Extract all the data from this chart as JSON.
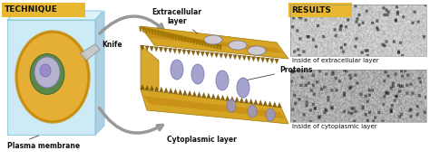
{
  "title_left": "TECHNIQUE",
  "title_right": "RESULTS",
  "title_bg": "#E8B830",
  "title_text_color": "#111111",
  "label_knife": "Knife",
  "label_plasma": "Plasma membrane",
  "label_extra_layer": "Extracellular\nlayer",
  "label_cyto_layer": "Cytoplasmic layer",
  "label_proteins": "Proteins",
  "label_inside_extra": "Inside of extracellular layer",
  "label_inside_cyto": "Inside of cytoplasmic layer",
  "bg_color": "#ffffff",
  "cell_color": "#b8ddf0",
  "membrane_color": "#D4A017",
  "membrane_dark": "#9B7200",
  "protein_color": "#9898C8",
  "protein_edge": "#7070A8",
  "arrow_color": "#999999",
  "fig_width": 4.74,
  "fig_height": 1.77,
  "dpi": 100
}
